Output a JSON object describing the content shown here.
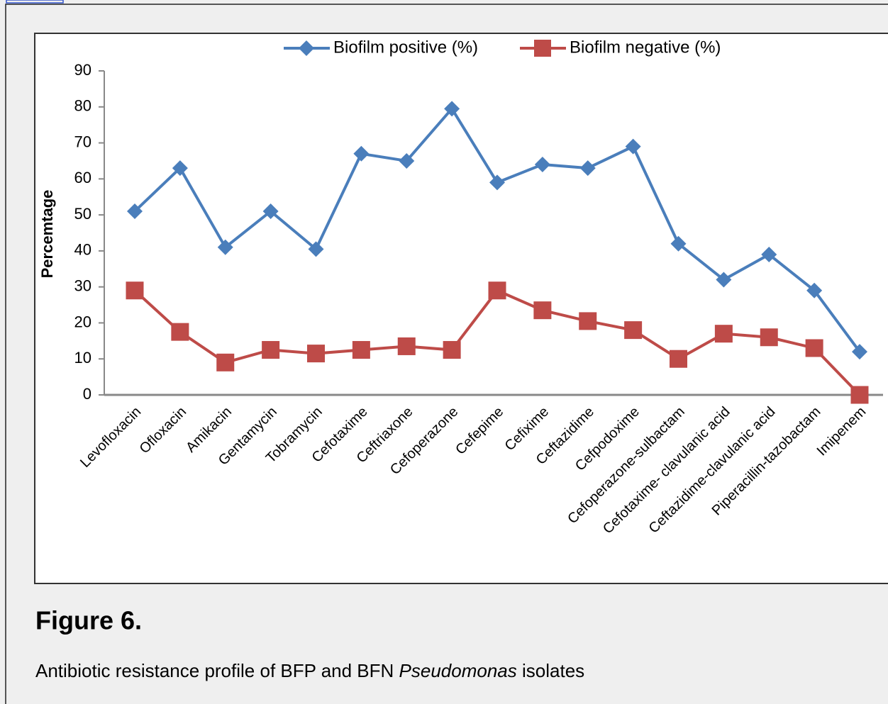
{
  "chart_data": {
    "type": "line",
    "ylabel": "Percemtage",
    "categories": [
      "Levofloxacin",
      "Ofloxacin",
      "Amikacin",
      "Gentamycin",
      "Tobramycin",
      "Cefotaxime",
      "Ceftriaxone",
      "Cefoperazone",
      "Cefepime",
      "Cefixime",
      "Ceftazidime",
      "Cefpodoxime",
      "Cefoperazone-sulbactam",
      "Cefotaxime- clavulanic acid",
      "Ceftazidime-clavulanic acid",
      "Piperacillin-tazobactam",
      "Imipenem"
    ],
    "series": [
      {
        "name": "Biofilm positive (%)",
        "color": "#4a7ebb",
        "marker": "diamond",
        "values": [
          51,
          63,
          41,
          51,
          40.5,
          67,
          65,
          79.5,
          59,
          64,
          63,
          69,
          42,
          32,
          39,
          29,
          12
        ]
      },
      {
        "name": "Biofilm negative (%)",
        "color": "#be4b48",
        "marker": "square",
        "values": [
          29,
          17.5,
          9,
          12.5,
          11.5,
          12.5,
          13.5,
          12.5,
          29,
          23.5,
          20.5,
          18,
          10,
          17,
          16,
          13,
          0
        ]
      }
    ],
    "ylim": [
      0,
      90
    ],
    "yticks": [
      0,
      10,
      20,
      30,
      40,
      50,
      60,
      70,
      80,
      90
    ],
    "legend": "top",
    "grid": false
  },
  "figure": {
    "label": "Figure 6.",
    "caption": [
      "Antibiotic resistance profile of BFP and BFN ",
      "Pseudomonas",
      " isolates"
    ]
  }
}
